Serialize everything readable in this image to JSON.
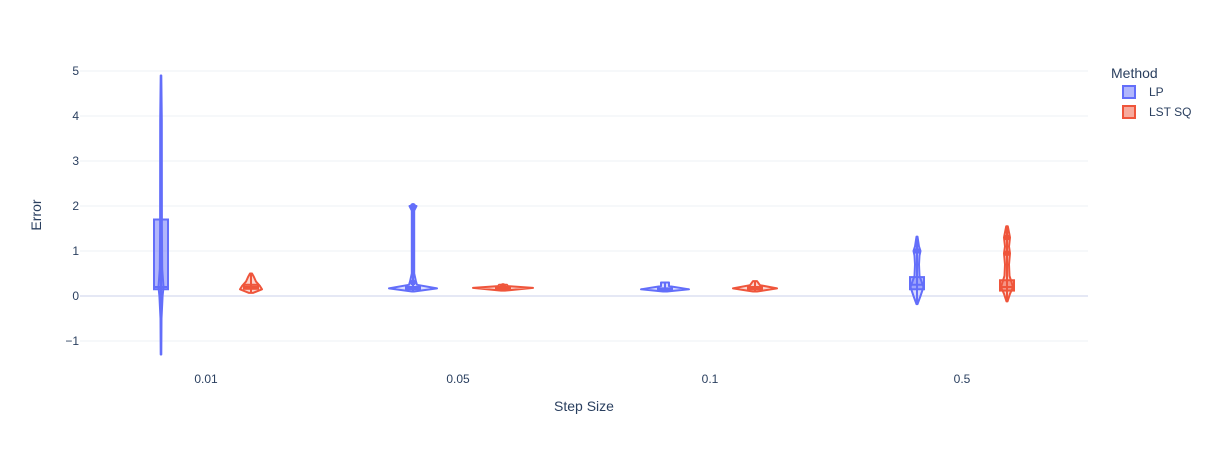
{
  "chart_data": {
    "type": "violin",
    "title": "",
    "xlabel": "Step Size",
    "ylabel": "Error",
    "categories": [
      "0.01",
      "0.05",
      "0.1",
      "0.5"
    ],
    "ylim": [
      -1.35,
      5.2
    ],
    "yticks": [
      -1,
      0,
      1,
      2,
      3,
      4,
      5
    ],
    "ytick_labels": [
      "−1",
      "0",
      "1",
      "2",
      "3",
      "4",
      "5"
    ],
    "grid": true,
    "legend": {
      "title": "Method",
      "position": "top-right"
    },
    "series": [
      {
        "name": "LP",
        "color": "#636efa",
        "fill": "rgba(99,110,250,0.5)",
        "groups": [
          {
            "category": "0.01",
            "min": -1.3,
            "max": 4.9,
            "q1": 0.15,
            "median": 0.2,
            "q3": 1.7,
            "density": [
              [
                -1.3,
                0.3
              ],
              [
                -0.5,
                0.5
              ],
              [
                0.0,
                1.6
              ],
              [
                0.2,
                2.5
              ],
              [
                0.6,
                1.2
              ],
              [
                1.5,
                0.9
              ],
              [
                3.9,
                0.8
              ],
              [
                4.9,
                0.3
              ]
            ]
          },
          {
            "category": "0.05",
            "min": 0.1,
            "max": 2.0,
            "q1": 0.15,
            "median": 0.17,
            "q3": 0.2,
            "outliers": [
              2.0,
              0.3
            ],
            "density": [
              [
                0.1,
                1.0
              ],
              [
                0.17,
                24.0
              ],
              [
                0.25,
                4.0
              ],
              [
                0.32,
                3.0
              ],
              [
                0.5,
                1.2
              ],
              [
                1.9,
                1.2
              ],
              [
                2.0,
                3.5
              ]
            ]
          },
          {
            "category": "0.1",
            "min": 0.1,
            "max": 0.3,
            "q1": 0.13,
            "median": 0.15,
            "q3": 0.17,
            "density": [
              [
                0.1,
                2.0
              ],
              [
                0.15,
                24.0
              ],
              [
                0.22,
                4.0
              ],
              [
                0.3,
                4.0
              ]
            ]
          },
          {
            "category": "0.5",
            "min": -0.18,
            "max": 1.32,
            "q1": 0.15,
            "median": 0.25,
            "q3": 0.42,
            "outliers": [
              1.0
            ],
            "density": [
              [
                -0.18,
                0.5
              ],
              [
                0.0,
                3.5
              ],
              [
                0.2,
                6.5
              ],
              [
                0.45,
                2.5
              ],
              [
                0.7,
                2.0
              ],
              [
                0.9,
                2.5
              ],
              [
                1.0,
                3.5
              ],
              [
                1.1,
                2.0
              ],
              [
                1.32,
                0.5
              ]
            ]
          }
        ]
      },
      {
        "name": "LST SQ",
        "color": "#ef553b",
        "fill": "rgba(239,85,59,0.5)",
        "groups": [
          {
            "category": "0.01",
            "min": 0.07,
            "max": 0.5,
            "q1": 0.16,
            "median": 0.2,
            "q3": 0.25,
            "density": [
              [
                0.07,
                2.0
              ],
              [
                0.15,
                11.0
              ],
              [
                0.22,
                9.0
              ],
              [
                0.32,
                5.0
              ],
              [
                0.42,
                3.0
              ],
              [
                0.5,
                1.0
              ]
            ]
          },
          {
            "category": "0.05",
            "min": 0.12,
            "max": 0.25,
            "q1": 0.16,
            "median": 0.18,
            "q3": 0.2,
            "outliers": [
              0.22
            ],
            "density": [
              [
                0.12,
                2.0
              ],
              [
                0.18,
                30.0
              ],
              [
                0.22,
                5.0
              ],
              [
                0.25,
                4.0
              ]
            ]
          },
          {
            "category": "0.1",
            "min": 0.1,
            "max": 0.33,
            "q1": 0.15,
            "median": 0.18,
            "q3": 0.2,
            "density": [
              [
                0.1,
                2.0
              ],
              [
                0.17,
                22.0
              ],
              [
                0.24,
                5.0
              ],
              [
                0.33,
                2.0
              ]
            ]
          },
          {
            "category": "0.5",
            "min": -0.12,
            "max": 1.55,
            "q1": 0.12,
            "median": 0.2,
            "q3": 0.35,
            "outliers": [
              1.3,
              0.95
            ],
            "density": [
              [
                -0.12,
                0.5
              ],
              [
                0.05,
                3.0
              ],
              [
                0.2,
                6.0
              ],
              [
                0.45,
                2.5
              ],
              [
                0.7,
                2.0
              ],
              [
                0.95,
                3.0
              ],
              [
                1.1,
                2.0
              ],
              [
                1.3,
                3.0
              ],
              [
                1.55,
                0.8
              ]
            ]
          }
        ]
      }
    ]
  }
}
